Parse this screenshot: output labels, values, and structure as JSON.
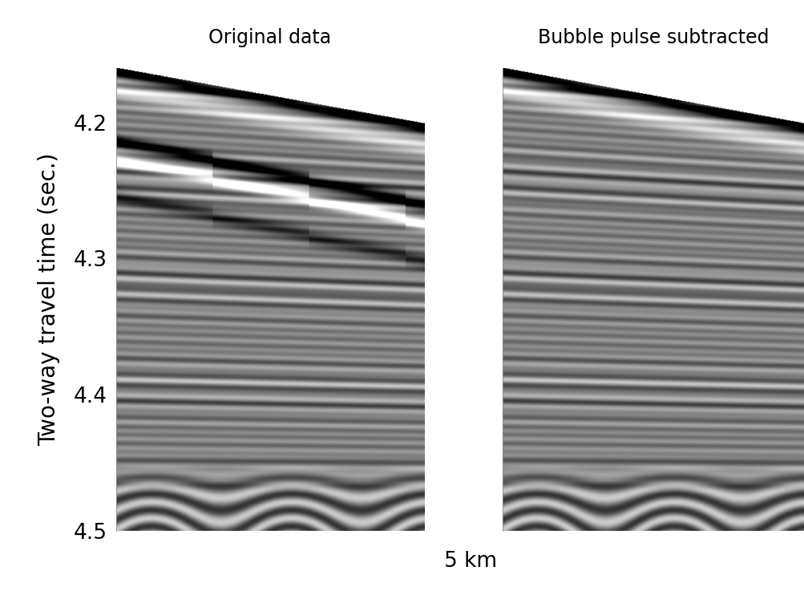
{
  "chart_data": [
    {
      "type": "image",
      "title": "Original data",
      "ylabel": "Two-way travel time (sec.)",
      "xlim": [
        0,
        5
      ],
      "ylim": [
        4.16,
        4.5
      ],
      "yticks": [
        4.2,
        4.3,
        4.4,
        4.5
      ],
      "tick_labels": "y"
    },
    {
      "type": "image",
      "title": "Bubble pulse subtracted",
      "xlim": [
        0,
        5
      ],
      "ylim": [
        4.16,
        4.5
      ],
      "yticks": [
        4.2,
        4.3,
        4.4,
        4.5
      ],
      "tick_labels": false
    }
  ],
  "xlabel": "5 km"
}
